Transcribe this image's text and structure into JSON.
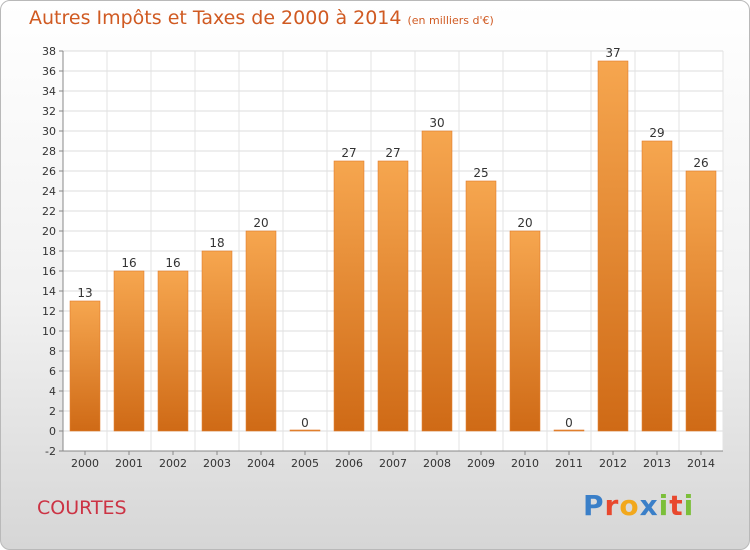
{
  "header": {
    "title": "Autres Impôts et Taxes de 2000 à 2014",
    "unit": "(en milliers d'€)"
  },
  "footer": {
    "commune": "COURTES",
    "logo": "Proxiti"
  },
  "colors": {
    "bar_light": "#f6a64f",
    "bar_dark": "#cf6a16",
    "title": "#d05a22",
    "commune": "#cc3344"
  },
  "chart_data": {
    "type": "bar",
    "categories": [
      "2000",
      "2001",
      "2002",
      "2003",
      "2004",
      "2005",
      "2006",
      "2007",
      "2008",
      "2009",
      "2010",
      "2011",
      "2012",
      "2013",
      "2014"
    ],
    "values": [
      13,
      16,
      16,
      18,
      20,
      0,
      27,
      27,
      30,
      25,
      20,
      0,
      37,
      29,
      26
    ],
    "title": "Autres Impôts et Taxes de 2000 à 2014",
    "ylim": [
      -2,
      38
    ],
    "ytick_step": 2,
    "grid": true,
    "data_labels": true
  }
}
